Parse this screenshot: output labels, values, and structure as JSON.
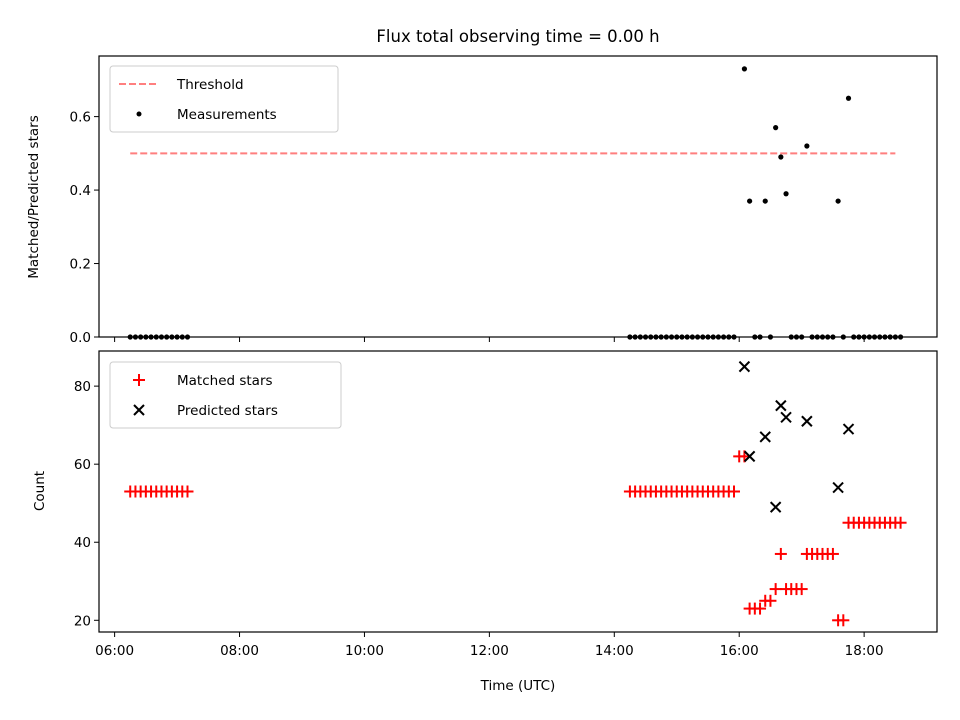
{
  "chart_data": [
    {
      "type": "scatter",
      "title": "Flux total observing time = 0.00 h",
      "ylabel": "Matched/Predicted stars",
      "xlabel": "",
      "ylim": [
        0,
        0.765
      ],
      "y_ticks": [
        "0.0",
        "0.2",
        "0.4",
        "0.6"
      ],
      "legend_position": "upper left",
      "threshold": {
        "name": "Threshold",
        "y": 0.5,
        "x_start": "06:15",
        "x_end": "18:30",
        "color": "#ff7f7f",
        "style": "dashed"
      },
      "series": [
        {
          "name": "Measurements",
          "color": "#000000",
          "marker": "dot",
          "points": [
            [
              "06:15",
              0
            ],
            [
              "06:20",
              0
            ],
            [
              "06:25",
              0
            ],
            [
              "06:30",
              0
            ],
            [
              "06:35",
              0
            ],
            [
              "06:40",
              0
            ],
            [
              "06:45",
              0
            ],
            [
              "06:50",
              0
            ],
            [
              "06:55",
              0
            ],
            [
              "07:00",
              0
            ],
            [
              "07:05",
              0
            ],
            [
              "07:10",
              0
            ],
            [
              "14:15",
              0
            ],
            [
              "14:20",
              0
            ],
            [
              "14:25",
              0
            ],
            [
              "14:30",
              0
            ],
            [
              "14:35",
              0
            ],
            [
              "14:40",
              0
            ],
            [
              "14:45",
              0
            ],
            [
              "14:50",
              0
            ],
            [
              "14:55",
              0
            ],
            [
              "15:00",
              0
            ],
            [
              "15:05",
              0
            ],
            [
              "15:10",
              0
            ],
            [
              "15:15",
              0
            ],
            [
              "15:20",
              0
            ],
            [
              "15:25",
              0
            ],
            [
              "15:30",
              0
            ],
            [
              "15:35",
              0
            ],
            [
              "15:40",
              0
            ],
            [
              "15:45",
              0
            ],
            [
              "15:50",
              0
            ],
            [
              "15:55",
              0
            ],
            [
              "16:05",
              0.73
            ],
            [
              "16:10",
              0.37
            ],
            [
              "16:15",
              0
            ],
            [
              "16:20",
              0
            ],
            [
              "16:25",
              0.37
            ],
            [
              "16:30",
              0
            ],
            [
              "16:35",
              0.57
            ],
            [
              "16:40",
              0.49
            ],
            [
              "16:45",
              0.39
            ],
            [
              "16:50",
              0
            ],
            [
              "16:55",
              0
            ],
            [
              "17:00",
              0
            ],
            [
              "17:05",
              0.52
            ],
            [
              "17:10",
              0
            ],
            [
              "17:15",
              0
            ],
            [
              "17:20",
              0
            ],
            [
              "17:25",
              0
            ],
            [
              "17:30",
              0
            ],
            [
              "17:35",
              0.37
            ],
            [
              "17:40",
              0
            ],
            [
              "17:45",
              0.65
            ],
            [
              "17:50",
              0
            ],
            [
              "17:55",
              0
            ],
            [
              "18:00",
              0
            ],
            [
              "18:05",
              0
            ],
            [
              "18:10",
              0
            ],
            [
              "18:15",
              0
            ],
            [
              "18:20",
              0
            ],
            [
              "18:25",
              0
            ],
            [
              "18:30",
              0
            ],
            [
              "18:35",
              0
            ]
          ]
        }
      ]
    },
    {
      "type": "scatter",
      "title": "",
      "ylabel": "Count",
      "xlabel": "Time (UTC)",
      "ylim": [
        17,
        89
      ],
      "y_ticks": [
        "20",
        "40",
        "60",
        "80"
      ],
      "x_ticks": [
        "06:00",
        "08:00",
        "10:00",
        "12:00",
        "14:00",
        "16:00",
        "18:00"
      ],
      "xlim": [
        "05:45",
        "19:10"
      ],
      "legend_position": "upper left",
      "series": [
        {
          "name": "Matched stars",
          "color": "#ff0000",
          "marker": "plus",
          "points": [
            [
              "06:15",
              53
            ],
            [
              "06:20",
              53
            ],
            [
              "06:25",
              53
            ],
            [
              "06:30",
              53
            ],
            [
              "06:35",
              53
            ],
            [
              "06:40",
              53
            ],
            [
              "06:45",
              53
            ],
            [
              "06:50",
              53
            ],
            [
              "06:55",
              53
            ],
            [
              "07:00",
              53
            ],
            [
              "07:05",
              53
            ],
            [
              "07:10",
              53
            ],
            [
              "14:15",
              53
            ],
            [
              "14:20",
              53
            ],
            [
              "14:25",
              53
            ],
            [
              "14:30",
              53
            ],
            [
              "14:35",
              53
            ],
            [
              "14:40",
              53
            ],
            [
              "14:45",
              53
            ],
            [
              "14:50",
              53
            ],
            [
              "14:55",
              53
            ],
            [
              "15:00",
              53
            ],
            [
              "15:05",
              53
            ],
            [
              "15:10",
              53
            ],
            [
              "15:15",
              53
            ],
            [
              "15:20",
              53
            ],
            [
              "15:25",
              53
            ],
            [
              "15:30",
              53
            ],
            [
              "15:35",
              53
            ],
            [
              "15:40",
              53
            ],
            [
              "15:45",
              53
            ],
            [
              "15:50",
              53
            ],
            [
              "15:55",
              53
            ],
            [
              "16:00",
              62
            ],
            [
              "16:05",
              62
            ],
            [
              "16:10",
              23
            ],
            [
              "16:15",
              23
            ],
            [
              "16:20",
              23
            ],
            [
              "16:25",
              25
            ],
            [
              "16:30",
              25
            ],
            [
              "16:35",
              28
            ],
            [
              "16:40",
              37
            ],
            [
              "16:45",
              28
            ],
            [
              "16:50",
              28
            ],
            [
              "16:55",
              28
            ],
            [
              "17:00",
              28
            ],
            [
              "17:05",
              37
            ],
            [
              "17:10",
              37
            ],
            [
              "17:15",
              37
            ],
            [
              "17:20",
              37
            ],
            [
              "17:25",
              37
            ],
            [
              "17:30",
              37
            ],
            [
              "17:35",
              20
            ],
            [
              "17:40",
              20
            ],
            [
              "17:45",
              45
            ],
            [
              "17:50",
              45
            ],
            [
              "17:55",
              45
            ],
            [
              "18:00",
              45
            ],
            [
              "18:05",
              45
            ],
            [
              "18:10",
              45
            ],
            [
              "18:15",
              45
            ],
            [
              "18:20",
              45
            ],
            [
              "18:25",
              45
            ],
            [
              "18:30",
              45
            ],
            [
              "18:35",
              45
            ]
          ]
        },
        {
          "name": "Predicted stars",
          "color": "#000000",
          "marker": "x",
          "points": [
            [
              "16:05",
              85
            ],
            [
              "16:10",
              62
            ],
            [
              "16:25",
              67
            ],
            [
              "16:35",
              49
            ],
            [
              "16:40",
              75
            ],
            [
              "16:45",
              72
            ],
            [
              "17:05",
              71
            ],
            [
              "17:35",
              54
            ],
            [
              "17:45",
              69
            ]
          ]
        }
      ]
    }
  ]
}
